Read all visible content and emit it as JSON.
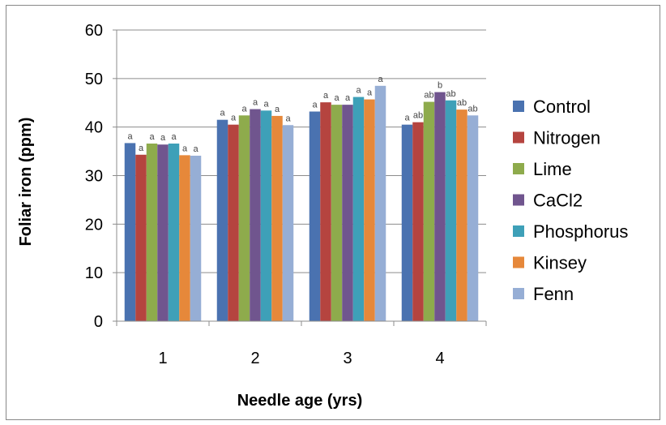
{
  "chart_data": {
    "type": "bar",
    "title": "",
    "xlabel": "Needle age (yrs)",
    "ylabel": "Foliar iron (ppm)",
    "categories": [
      "1",
      "2",
      "3",
      "4"
    ],
    "ylim": [
      0,
      60
    ],
    "yticks": [
      "0",
      "10",
      "20",
      "30",
      "40",
      "50",
      "60"
    ],
    "grid": "horizontal",
    "legend_position": "right",
    "series": [
      {
        "name": "Control",
        "color": "#4a72b0",
        "values": [
          36.7,
          41.5,
          43.2,
          40.5
        ],
        "labels": [
          "a",
          "a",
          "a",
          "a"
        ]
      },
      {
        "name": "Nitrogen",
        "color": "#b5443f",
        "values": [
          34.3,
          40.5,
          45.1,
          41.0
        ],
        "labels": [
          "a",
          "a",
          "a",
          "ab"
        ]
      },
      {
        "name": "Lime",
        "color": "#8eab4c",
        "values": [
          36.6,
          42.4,
          44.6,
          45.2
        ],
        "labels": [
          "a",
          "a",
          "a",
          "ab"
        ]
      },
      {
        "name": "CaCl2",
        "color": "#70558e",
        "values": [
          36.4,
          43.7,
          44.6,
          47.2
        ],
        "labels": [
          "a",
          "a",
          "a",
          "b"
        ]
      },
      {
        "name": "Phosphorus",
        "color": "#3ea0b8",
        "values": [
          36.6,
          43.4,
          46.2,
          45.5
        ],
        "labels": [
          "a",
          "a",
          "a",
          "ab"
        ]
      },
      {
        "name": "Kinsey",
        "color": "#e6883a",
        "values": [
          34.2,
          42.3,
          45.7,
          43.6
        ],
        "labels": [
          "a",
          "a",
          "a",
          "ab"
        ]
      },
      {
        "name": "Fenn",
        "color": "#96aed5",
        "values": [
          34.1,
          40.4,
          48.5,
          42.4
        ],
        "labels": [
          "a",
          "a",
          "a",
          "ab"
        ]
      }
    ]
  }
}
